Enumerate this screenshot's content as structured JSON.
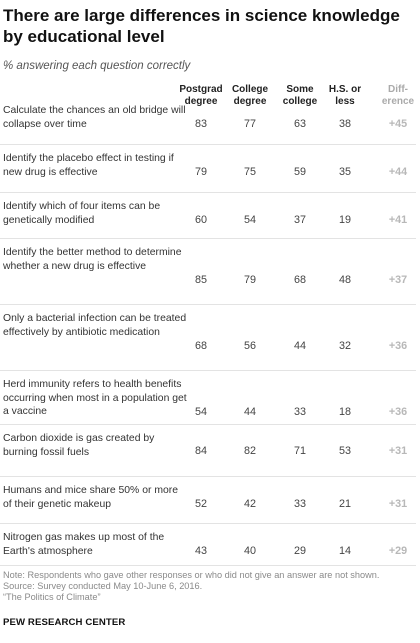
{
  "title": "There are large differences in science knowledge by educational level",
  "subtitle": "% answering each question correctly",
  "chart_data": {
    "type": "table",
    "columns": [
      "Postgrad degree",
      "College degree",
      "Some college",
      "H.S. or less",
      "Diff-erence"
    ],
    "column_heads": [
      [
        "Postgrad",
        "degree"
      ],
      [
        "College",
        "degree"
      ],
      [
        "Some",
        "college"
      ],
      [
        "H.S. or",
        "less"
      ],
      [
        "Diff-",
        "erence"
      ]
    ],
    "rows": [
      {
        "label": "Calculate the chances an old bridge will collapse over time",
        "values": [
          "83",
          "77",
          "63",
          "38"
        ],
        "diff": "+45"
      },
      {
        "label": "Identify the placebo effect in testing if new drug is effective",
        "values": [
          "79",
          "75",
          "59",
          "35"
        ],
        "diff": "+44"
      },
      {
        "label": "Identify which of four items can be genetically modified",
        "values": [
          "60",
          "54",
          "37",
          "19"
        ],
        "diff": "+41"
      },
      {
        "label": "Identify the better method to determine whether a new drug is effective",
        "values": [
          "85",
          "79",
          "68",
          "48"
        ],
        "diff": "+37"
      },
      {
        "label": "Only a bacterial infection can be treated effectively by antibiotic medication",
        "values": [
          "68",
          "56",
          "44",
          "32"
        ],
        "diff": "+36"
      },
      {
        "label": "Herd immunity refers to health benefits occurring when most in a population get a vaccine",
        "values": [
          "54",
          "44",
          "33",
          "18"
        ],
        "diff": "+36"
      },
      {
        "label": "Carbon dioxide is gas created by burning fossil fuels",
        "values": [
          "84",
          "82",
          "71",
          "53"
        ],
        "diff": "+31"
      },
      {
        "label": "Humans and mice share 50% or more of their genetic makeup",
        "values": [
          "52",
          "42",
          "33",
          "21"
        ],
        "diff": "+31"
      },
      {
        "label": "Nitrogen gas makes up most of the Earth's atmosphere",
        "values": [
          "43",
          "40",
          "29",
          "14"
        ],
        "diff": "+29"
      }
    ]
  },
  "note": "Note: Respondents who gave other responses or who did not give an answer are not shown.",
  "source": "Source: Survey conducted May 10-June 6, 2016.",
  "report": "“The Politics of Climate”",
  "brand": "PEW RESEARCH CENTER",
  "colors": {
    "text": "#333333",
    "diff": "#b8b8b8",
    "separator": "#e3e3e3",
    "note": "#8a8a8a"
  }
}
